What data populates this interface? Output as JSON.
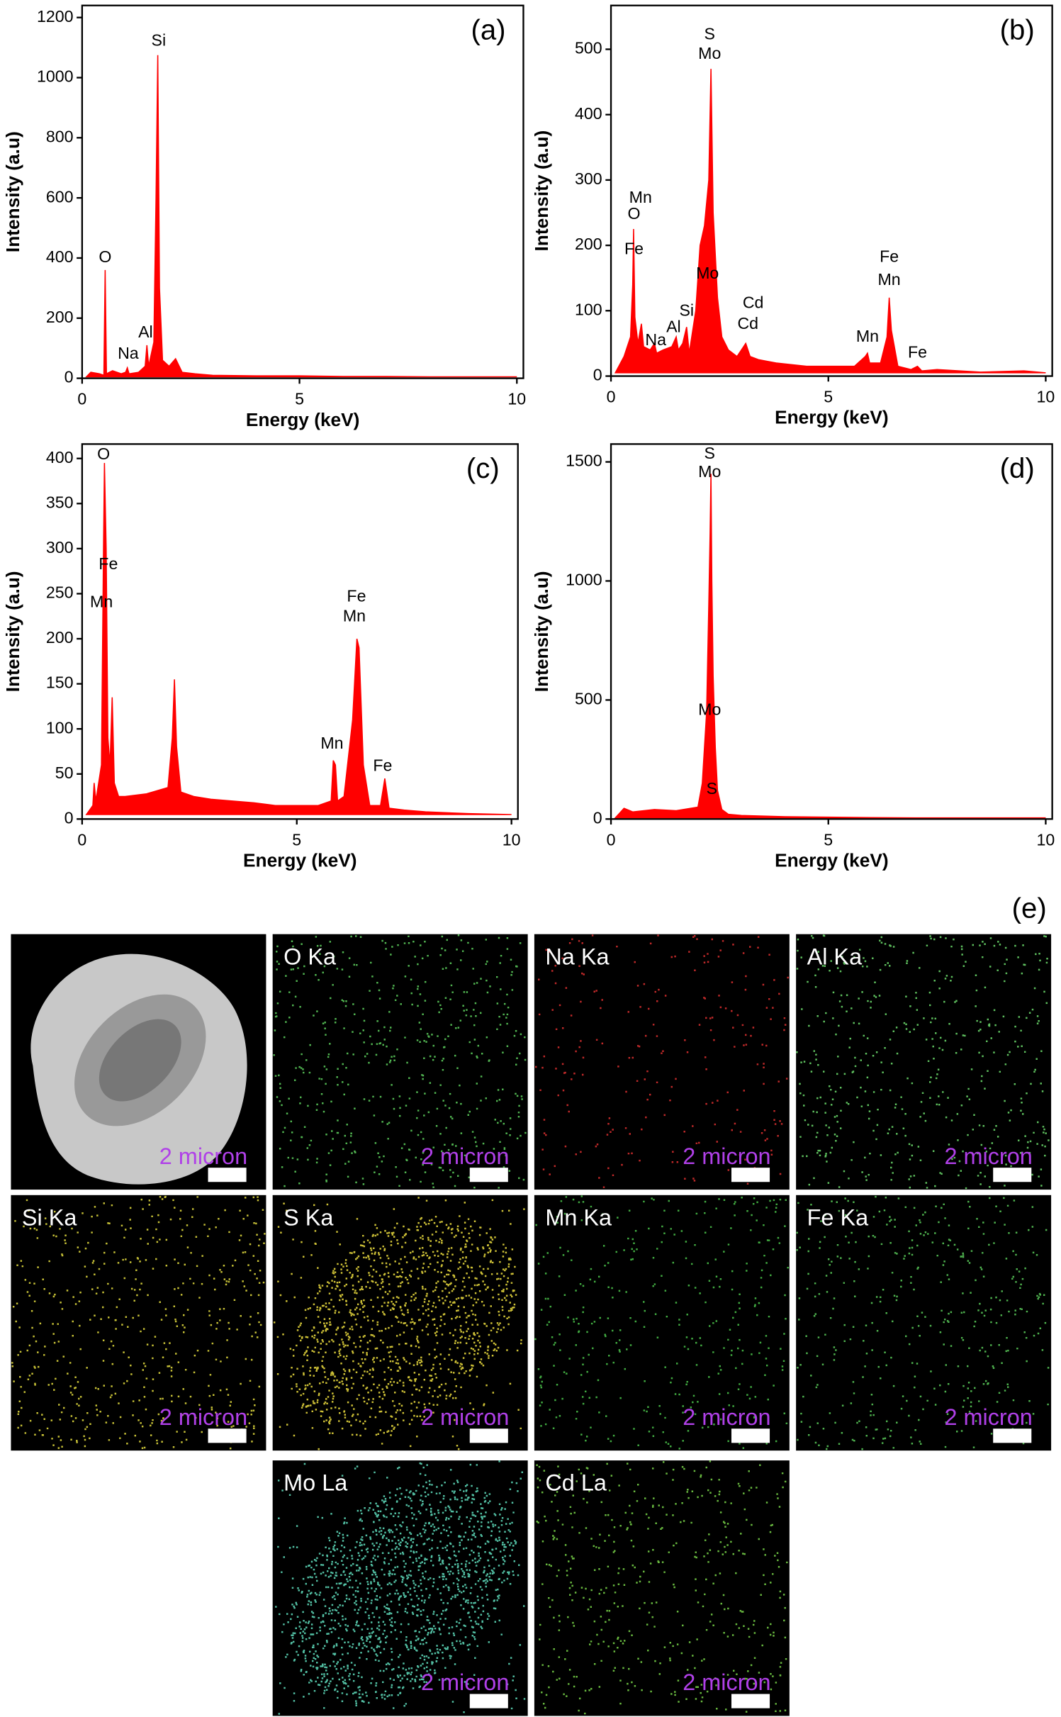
{
  "chart_data": [
    {
      "type": "area",
      "title": "(a)",
      "x_label": "Energy (keV)",
      "y_label": "Intensity (a.u)",
      "color": "#ff0000",
      "xlim": [
        0,
        10.15
      ],
      "xticks": [
        0,
        5,
        10
      ],
      "ylim": [
        0,
        1240
      ],
      "yticks": [
        0,
        200,
        400,
        600,
        800,
        1000,
        1200
      ],
      "x": [
        0.1,
        0.2,
        0.4,
        0.5,
        0.53,
        0.56,
        0.7,
        0.9,
        1.0,
        1.04,
        1.08,
        1.3,
        1.45,
        1.49,
        1.53,
        1.65,
        1.7,
        1.74,
        1.78,
        1.85,
        2.0,
        2.15,
        2.3,
        2.6,
        3,
        4,
        5,
        6,
        7,
        8,
        9,
        10
      ],
      "values": [
        5,
        20,
        15,
        10,
        360,
        15,
        25,
        15,
        20,
        35,
        15,
        20,
        40,
        110,
        40,
        120,
        600,
        1075,
        300,
        60,
        40,
        65,
        20,
        15,
        10,
        8,
        8,
        6,
        6,
        5,
        5,
        5
      ],
      "annotations": [
        {
          "text": "O",
          "x": 0.53,
          "y": 400
        },
        {
          "text": "Na",
          "x": 1.06,
          "y": 80
        },
        {
          "text": "Al",
          "x": 1.46,
          "y": 150
        },
        {
          "text": "Si",
          "x": 1.76,
          "y": 1120
        }
      ]
    },
    {
      "type": "area",
      "title": "(b)",
      "x_label": "Energy (keV)",
      "y_label": "Intensity (a.u)",
      "color": "#ff0000",
      "xlim": [
        0,
        10.15
      ],
      "xticks": [
        0,
        5,
        10
      ],
      "ylim": [
        0,
        567
      ],
      "yticks": [
        0,
        100,
        200,
        300,
        400,
        500
      ],
      "x": [
        0.1,
        0.3,
        0.45,
        0.5,
        0.52,
        0.55,
        0.62,
        0.7,
        0.75,
        0.9,
        1.0,
        1.05,
        1.2,
        1.4,
        1.5,
        1.55,
        1.65,
        1.74,
        1.8,
        1.95,
        2.05,
        2.15,
        2.25,
        2.3,
        2.35,
        2.45,
        2.55,
        2.7,
        2.9,
        3.05,
        3.1,
        3.2,
        3.4,
        3.8,
        4.5,
        5.0,
        5.6,
        5.85,
        5.9,
        5.95,
        6.2,
        6.35,
        6.4,
        6.45,
        6.6,
        6.9,
        7.05,
        7.15,
        7.5,
        8.5,
        9.5,
        10
      ],
      "values": [
        5,
        30,
        60,
        140,
        225,
        90,
        50,
        80,
        45,
        40,
        50,
        35,
        40,
        45,
        60,
        40,
        50,
        75,
        35,
        100,
        200,
        230,
        300,
        470,
        250,
        120,
        60,
        40,
        30,
        45,
        50,
        30,
        25,
        20,
        15,
        15,
        15,
        30,
        35,
        20,
        20,
        60,
        120,
        70,
        15,
        10,
        15,
        8,
        10,
        6,
        8,
        5
      ],
      "annotations": [
        {
          "text": "Mn",
          "x": 0.68,
          "y": 272
        },
        {
          "text": "O",
          "x": 0.53,
          "y": 247
        },
        {
          "text": "Fe",
          "x": 0.53,
          "y": 193
        },
        {
          "text": "Na",
          "x": 1.03,
          "y": 54
        },
        {
          "text": "Al",
          "x": 1.44,
          "y": 74
        },
        {
          "text": "Si",
          "x": 1.74,
          "y": 99
        },
        {
          "text": "S",
          "x": 2.27,
          "y": 522
        },
        {
          "text": "Mo",
          "x": 2.27,
          "y": 492
        },
        {
          "text": "Mo",
          "x": 2.22,
          "y": 156
        },
        {
          "text": "Cd",
          "x": 3.27,
          "y": 111
        },
        {
          "text": "Cd",
          "x": 3.15,
          "y": 79
        },
        {
          "text": "Mn",
          "x": 5.9,
          "y": 59
        },
        {
          "text": "Fe",
          "x": 6.4,
          "y": 181
        },
        {
          "text": "Mn",
          "x": 6.4,
          "y": 146
        },
        {
          "text": "Fe",
          "x": 7.05,
          "y": 35
        }
      ]
    },
    {
      "type": "area",
      "title": "(c)",
      "x_label": "Energy (keV)",
      "y_label": "Intensity (a.u)",
      "color": "#ff0000",
      "xlim": [
        0,
        10.15
      ],
      "xticks": [
        0,
        5,
        10
      ],
      "ylim": [
        0,
        416
      ],
      "yticks": [
        0,
        50,
        100,
        150,
        200,
        250,
        300,
        350,
        400
      ],
      "x": [
        0.1,
        0.25,
        0.28,
        0.32,
        0.45,
        0.5,
        0.52,
        0.56,
        0.6,
        0.65,
        0.7,
        0.75,
        0.85,
        1.0,
        1.5,
        2.0,
        2.1,
        2.15,
        2.2,
        2.3,
        2.6,
        3.0,
        3.5,
        4.0,
        4.5,
        5.0,
        5.5,
        5.8,
        5.85,
        5.9,
        5.95,
        6.1,
        6.3,
        6.4,
        6.45,
        6.55,
        6.7,
        6.95,
        7.05,
        7.15,
        7.5,
        8,
        9,
        10
      ],
      "values": [
        5,
        15,
        40,
        20,
        60,
        310,
        395,
        300,
        90,
        60,
        135,
        40,
        25,
        25,
        28,
        35,
        90,
        155,
        80,
        30,
        25,
        22,
        20,
        18,
        15,
        15,
        15,
        20,
        65,
        60,
        20,
        25,
        110,
        200,
        190,
        60,
        15,
        15,
        45,
        12,
        10,
        8,
        6,
        5
      ],
      "annotations": [
        {
          "text": "O",
          "x": 0.5,
          "y": 404
        },
        {
          "text": "Fe",
          "x": 0.61,
          "y": 282
        },
        {
          "text": "Mn",
          "x": 0.45,
          "y": 240
        },
        {
          "text": "Fe",
          "x": 6.39,
          "y": 246
        },
        {
          "text": "Mn",
          "x": 6.34,
          "y": 224
        },
        {
          "text": "Mn",
          "x": 5.82,
          "y": 83
        },
        {
          "text": "Fe",
          "x": 7.0,
          "y": 58
        }
      ]
    },
    {
      "type": "area",
      "title": "(d)",
      "x_label": "Energy (keV)",
      "y_label": "Intensity (a.u)",
      "color": "#ff0000",
      "xlim": [
        0,
        10.15
      ],
      "xticks": [
        0,
        5,
        10
      ],
      "ylim": [
        0,
        1575
      ],
      "yticks": [
        0,
        500,
        1000,
        1500
      ],
      "x": [
        0.1,
        0.3,
        0.5,
        1.0,
        1.5,
        2.0,
        2.1,
        2.2,
        2.25,
        2.28,
        2.3,
        2.32,
        2.35,
        2.4,
        2.45,
        2.55,
        2.7,
        3.0,
        4,
        5,
        6,
        7,
        8,
        9,
        10
      ],
      "values": [
        5,
        45,
        30,
        40,
        35,
        50,
        150,
        450,
        900,
        1200,
        1450,
        1000,
        600,
        300,
        120,
        40,
        20,
        15,
        10,
        8,
        6,
        5,
        5,
        5,
        5
      ],
      "annotations": [
        {
          "text": "S",
          "x": 2.27,
          "y": 1532
        },
        {
          "text": "Mo",
          "x": 2.27,
          "y": 1454
        },
        {
          "text": "Mo",
          "x": 2.27,
          "y": 456
        },
        {
          "text": "S",
          "x": 2.32,
          "y": 124
        }
      ]
    }
  ],
  "maps": {
    "label": "(e)",
    "panels": [
      {
        "scale": "2 micron",
        "color": "#c8c8c8"
      },
      {
        "title": "O Ka",
        "scale": "2 micron",
        "color": "#5fd35f"
      },
      {
        "title": "Na Ka",
        "scale": "2 micron",
        "color": "#e03030"
      },
      {
        "title": "Al Ka",
        "scale": "2 micron",
        "color": "#6ee06e"
      },
      {
        "title": "Si Ka",
        "scale": "2 micron",
        "color": "#e8e040"
      },
      {
        "title": "S Ka",
        "scale": "2 micron",
        "color": "#f0e040"
      },
      {
        "title": "Mn Ka",
        "scale": "2 micron",
        "color": "#4cc84c"
      },
      {
        "title": "Fe Ka",
        "scale": "2 micron",
        "color": "#5cd05c"
      },
      {
        "title": "Mo La",
        "scale": "2 micron",
        "color": "#60e0c0"
      },
      {
        "title": "Cd La",
        "scale": "2 micron",
        "color": "#7ad84a"
      }
    ]
  }
}
